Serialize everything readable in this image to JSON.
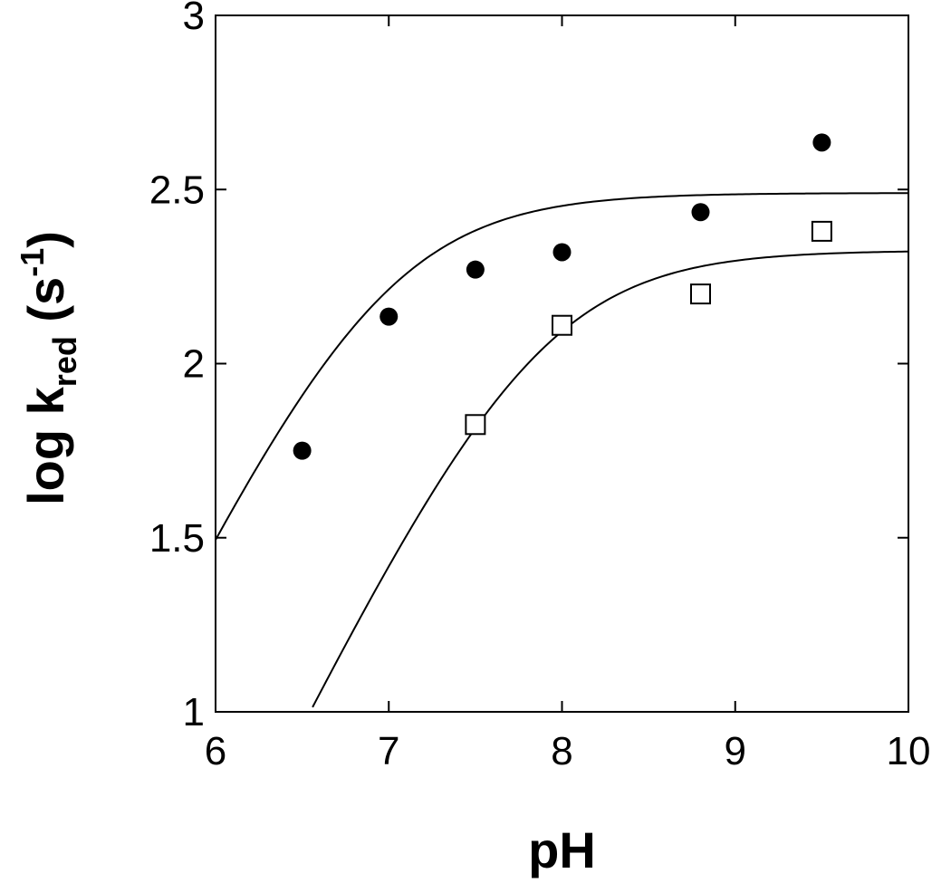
{
  "chart_data": {
    "type": "scatter",
    "title": "",
    "xlabel": "pH",
    "ylabel": {
      "base": "log k",
      "subscript": "red",
      "unit_open": " (s",
      "superscript": "-1",
      "unit_close": ")"
    },
    "xlim": [
      6,
      10
    ],
    "ylim": [
      1,
      3
    ],
    "xticks": [
      6,
      7,
      8,
      9,
      10
    ],
    "yticks": [
      1,
      1.5,
      2,
      2.5,
      3
    ],
    "xtick_labels": [
      "6",
      "7",
      "8",
      "9",
      "10"
    ],
    "ytick_labels": [
      "1",
      "1.5",
      "2",
      "2.5",
      "3"
    ],
    "grid": false,
    "series": [
      {
        "marker": "filled-circle",
        "color": "#000000",
        "points": [
          {
            "x": 6.5,
            "y": 1.75
          },
          {
            "x": 7.0,
            "y": 2.135
          },
          {
            "x": 7.5,
            "y": 2.27
          },
          {
            "x": 8.0,
            "y": 2.32
          },
          {
            "x": 8.8,
            "y": 2.435
          },
          {
            "x": 9.5,
            "y": 2.635
          }
        ],
        "fit": {
          "model": "log_k = log_kmax - log10(1 + 10^(pKa - pH))",
          "log_kmax": 2.49,
          "pKa": 6.95
        }
      },
      {
        "marker": "open-square",
        "color": "#000000",
        "points": [
          {
            "x": 7.5,
            "y": 1.825
          },
          {
            "x": 8.0,
            "y": 2.11
          },
          {
            "x": 8.8,
            "y": 2.2
          },
          {
            "x": 9.5,
            "y": 2.38
          }
        ],
        "fit": {
          "model": "log_k = log_kmax - log10(1 + 10^(pKa - pH))",
          "log_kmax": 2.325,
          "pKa": 7.85
        }
      }
    ]
  }
}
